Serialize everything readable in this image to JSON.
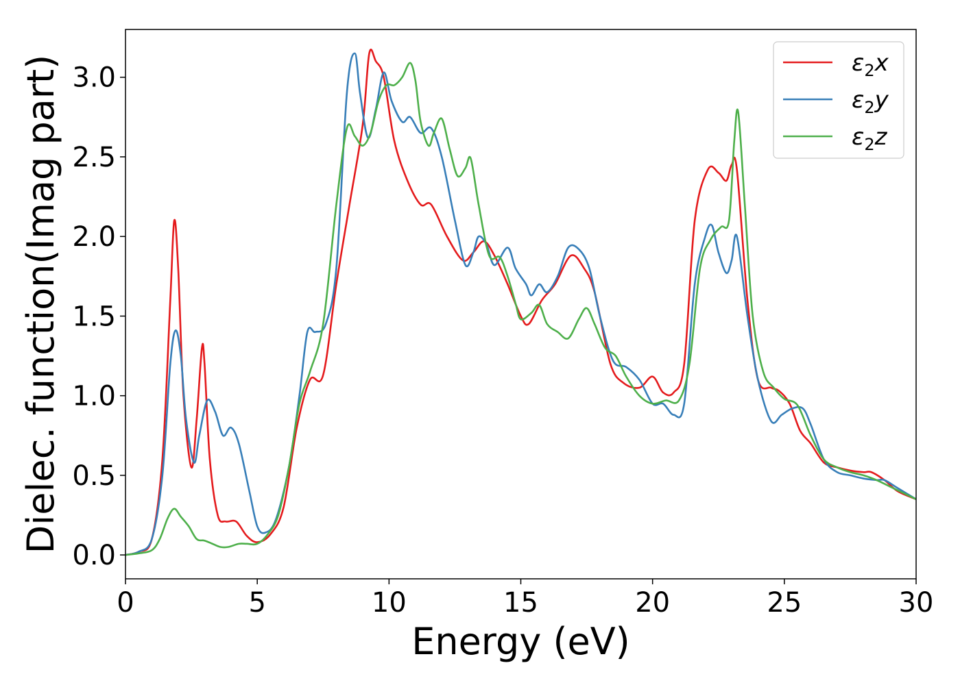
{
  "chart_data": {
    "type": "line",
    "title": "",
    "xlabel": "Energy (eV)",
    "ylabel": "Dielec. function(Imag part)",
    "xlim": [
      0,
      30
    ],
    "ylim": [
      -0.15,
      3.3
    ],
    "xticks": [
      0,
      5,
      10,
      15,
      20,
      25,
      30
    ],
    "xtick_labels": [
      "0",
      "5",
      "10",
      "15",
      "20",
      "25",
      "30"
    ],
    "yticks": [
      0.0,
      0.5,
      1.0,
      1.5,
      2.0,
      2.5,
      3.0
    ],
    "ytick_labels": [
      "0.0",
      "0.5",
      "1.0",
      "1.5",
      "2.0",
      "2.5",
      "3.0"
    ],
    "grid": false,
    "legend_position": "top-right",
    "series": [
      {
        "name": "ε2x",
        "legend_base": "ε",
        "legend_sub": "2",
        "legend_var": "x",
        "color": "#e41a1c",
        "points": [
          [
            0,
            0
          ],
          [
            0.5,
            0.02
          ],
          [
            1.0,
            0.1
          ],
          [
            1.4,
            0.6
          ],
          [
            1.7,
            1.6
          ],
          [
            1.85,
            2.1
          ],
          [
            2.0,
            1.8
          ],
          [
            2.2,
            1.0
          ],
          [
            2.5,
            0.55
          ],
          [
            2.7,
            0.85
          ],
          [
            2.9,
            1.3
          ],
          [
            3.0,
            1.2
          ],
          [
            3.2,
            0.6
          ],
          [
            3.5,
            0.25
          ],
          [
            3.8,
            0.21
          ],
          [
            4.2,
            0.21
          ],
          [
            4.6,
            0.12
          ],
          [
            5.0,
            0.08
          ],
          [
            5.5,
            0.13
          ],
          [
            6.0,
            0.3
          ],
          [
            6.5,
            0.8
          ],
          [
            7.0,
            1.1
          ],
          [
            7.5,
            1.13
          ],
          [
            8.0,
            1.7
          ],
          [
            8.5,
            2.2
          ],
          [
            9.0,
            2.7
          ],
          [
            9.25,
            3.15
          ],
          [
            9.5,
            3.1
          ],
          [
            9.8,
            3.0
          ],
          [
            10.2,
            2.6
          ],
          [
            10.7,
            2.35
          ],
          [
            11.2,
            2.2
          ],
          [
            11.6,
            2.2
          ],
          [
            12.2,
            2.0
          ],
          [
            12.8,
            1.85
          ],
          [
            13.2,
            1.9
          ],
          [
            13.6,
            1.97
          ],
          [
            14.0,
            1.88
          ],
          [
            14.5,
            1.7
          ],
          [
            15.0,
            1.5
          ],
          [
            15.3,
            1.45
          ],
          [
            15.8,
            1.6
          ],
          [
            16.3,
            1.7
          ],
          [
            16.9,
            1.88
          ],
          [
            17.4,
            1.8
          ],
          [
            17.8,
            1.65
          ],
          [
            18.4,
            1.2
          ],
          [
            18.9,
            1.08
          ],
          [
            19.5,
            1.05
          ],
          [
            20.0,
            1.12
          ],
          [
            20.4,
            1.02
          ],
          [
            20.8,
            1.02
          ],
          [
            21.2,
            1.2
          ],
          [
            21.6,
            2.1
          ],
          [
            22.1,
            2.42
          ],
          [
            22.5,
            2.4
          ],
          [
            22.8,
            2.35
          ],
          [
            23.0,
            2.45
          ],
          [
            23.2,
            2.42
          ],
          [
            23.6,
            1.6
          ],
          [
            24.0,
            1.1
          ],
          [
            24.5,
            1.05
          ],
          [
            24.8,
            1.03
          ],
          [
            25.2,
            0.95
          ],
          [
            25.6,
            0.78
          ],
          [
            26.0,
            0.7
          ],
          [
            26.5,
            0.58
          ],
          [
            27.0,
            0.55
          ],
          [
            27.5,
            0.53
          ],
          [
            28.0,
            0.52
          ],
          [
            28.3,
            0.52
          ],
          [
            28.8,
            0.47
          ],
          [
            29.3,
            0.4
          ],
          [
            30.0,
            0.35
          ]
        ]
      },
      {
        "name": "ε2y",
        "legend_base": "ε",
        "legend_sub": "2",
        "legend_var": "y",
        "color": "#377eb8",
        "points": [
          [
            0,
            0
          ],
          [
            0.5,
            0.02
          ],
          [
            1.0,
            0.1
          ],
          [
            1.4,
            0.5
          ],
          [
            1.7,
            1.2
          ],
          [
            1.9,
            1.41
          ],
          [
            2.1,
            1.25
          ],
          [
            2.3,
            0.85
          ],
          [
            2.6,
            0.58
          ],
          [
            2.8,
            0.75
          ],
          [
            3.1,
            0.97
          ],
          [
            3.4,
            0.9
          ],
          [
            3.7,
            0.75
          ],
          [
            4.0,
            0.8
          ],
          [
            4.3,
            0.7
          ],
          [
            4.7,
            0.4
          ],
          [
            5.0,
            0.18
          ],
          [
            5.3,
            0.14
          ],
          [
            5.7,
            0.22
          ],
          [
            6.2,
            0.55
          ],
          [
            6.6,
            1.0
          ],
          [
            6.9,
            1.4
          ],
          [
            7.2,
            1.4
          ],
          [
            7.6,
            1.45
          ],
          [
            8.0,
            1.8
          ],
          [
            8.4,
            2.9
          ],
          [
            8.7,
            3.15
          ],
          [
            8.9,
            2.9
          ],
          [
            9.2,
            2.62
          ],
          [
            9.5,
            2.8
          ],
          [
            9.8,
            3.03
          ],
          [
            10.1,
            2.85
          ],
          [
            10.5,
            2.72
          ],
          [
            10.8,
            2.75
          ],
          [
            11.2,
            2.65
          ],
          [
            11.6,
            2.68
          ],
          [
            12.0,
            2.5
          ],
          [
            12.5,
            2.1
          ],
          [
            12.9,
            1.82
          ],
          [
            13.2,
            1.9
          ],
          [
            13.4,
            2.0
          ],
          [
            13.7,
            1.95
          ],
          [
            14.0,
            1.82
          ],
          [
            14.5,
            1.93
          ],
          [
            14.8,
            1.8
          ],
          [
            15.2,
            1.7
          ],
          [
            15.4,
            1.63
          ],
          [
            15.7,
            1.7
          ],
          [
            16.0,
            1.65
          ],
          [
            16.4,
            1.75
          ],
          [
            16.8,
            1.93
          ],
          [
            17.2,
            1.92
          ],
          [
            17.6,
            1.8
          ],
          [
            18.0,
            1.5
          ],
          [
            18.5,
            1.22
          ],
          [
            19.0,
            1.18
          ],
          [
            19.5,
            1.1
          ],
          [
            20.0,
            0.95
          ],
          [
            20.4,
            0.95
          ],
          [
            20.8,
            0.88
          ],
          [
            21.2,
            0.95
          ],
          [
            21.6,
            1.7
          ],
          [
            22.0,
            2.0
          ],
          [
            22.25,
            2.07
          ],
          [
            22.5,
            1.9
          ],
          [
            22.8,
            1.77
          ],
          [
            23.0,
            1.85
          ],
          [
            23.2,
            2.0
          ],
          [
            23.6,
            1.5
          ],
          [
            24.0,
            1.1
          ],
          [
            24.5,
            0.84
          ],
          [
            24.9,
            0.88
          ],
          [
            25.3,
            0.92
          ],
          [
            25.7,
            0.92
          ],
          [
            26.0,
            0.82
          ],
          [
            26.5,
            0.6
          ],
          [
            27.0,
            0.52
          ],
          [
            27.5,
            0.5
          ],
          [
            28.0,
            0.48
          ],
          [
            28.5,
            0.47
          ],
          [
            28.8,
            0.47
          ],
          [
            29.3,
            0.42
          ],
          [
            30.0,
            0.35
          ]
        ]
      },
      {
        "name": "ε2z",
        "legend_base": "ε",
        "legend_sub": "2",
        "legend_var": "z",
        "color": "#4daf4a",
        "points": [
          [
            0,
            0
          ],
          [
            0.5,
            0.01
          ],
          [
            1.0,
            0.03
          ],
          [
            1.3,
            0.1
          ],
          [
            1.6,
            0.23
          ],
          [
            1.85,
            0.29
          ],
          [
            2.1,
            0.24
          ],
          [
            2.4,
            0.18
          ],
          [
            2.7,
            0.1
          ],
          [
            3.0,
            0.09
          ],
          [
            3.3,
            0.07
          ],
          [
            3.6,
            0.05
          ],
          [
            3.9,
            0.05
          ],
          [
            4.3,
            0.07
          ],
          [
            4.6,
            0.07
          ],
          [
            5.0,
            0.07
          ],
          [
            5.4,
            0.13
          ],
          [
            5.8,
            0.25
          ],
          [
            6.2,
            0.55
          ],
          [
            6.6,
            0.95
          ],
          [
            7.0,
            1.15
          ],
          [
            7.5,
            1.45
          ],
          [
            8.0,
            2.2
          ],
          [
            8.4,
            2.68
          ],
          [
            8.7,
            2.63
          ],
          [
            9.0,
            2.57
          ],
          [
            9.3,
            2.65
          ],
          [
            9.6,
            2.85
          ],
          [
            9.9,
            2.95
          ],
          [
            10.2,
            2.95
          ],
          [
            10.5,
            3.0
          ],
          [
            10.8,
            3.09
          ],
          [
            11.0,
            2.98
          ],
          [
            11.2,
            2.72
          ],
          [
            11.5,
            2.57
          ],
          [
            11.7,
            2.65
          ],
          [
            12.0,
            2.74
          ],
          [
            12.3,
            2.55
          ],
          [
            12.6,
            2.38
          ],
          [
            12.9,
            2.43
          ],
          [
            13.1,
            2.49
          ],
          [
            13.4,
            2.2
          ],
          [
            13.8,
            1.88
          ],
          [
            14.2,
            1.87
          ],
          [
            14.5,
            1.75
          ],
          [
            14.8,
            1.58
          ],
          [
            15.0,
            1.48
          ],
          [
            15.4,
            1.52
          ],
          [
            15.7,
            1.57
          ],
          [
            16.0,
            1.45
          ],
          [
            16.4,
            1.4
          ],
          [
            16.8,
            1.36
          ],
          [
            17.2,
            1.48
          ],
          [
            17.5,
            1.55
          ],
          [
            17.8,
            1.45
          ],
          [
            18.2,
            1.3
          ],
          [
            18.6,
            1.25
          ],
          [
            19.0,
            1.12
          ],
          [
            19.5,
            1.0
          ],
          [
            20.0,
            0.95
          ],
          [
            20.5,
            0.97
          ],
          [
            21.0,
            0.97
          ],
          [
            21.4,
            1.2
          ],
          [
            21.8,
            1.8
          ],
          [
            22.2,
            1.98
          ],
          [
            22.6,
            2.06
          ],
          [
            22.9,
            2.1
          ],
          [
            23.1,
            2.6
          ],
          [
            23.25,
            2.78
          ],
          [
            23.5,
            2.2
          ],
          [
            23.8,
            1.5
          ],
          [
            24.2,
            1.15
          ],
          [
            24.6,
            1.05
          ],
          [
            25.0,
            0.98
          ],
          [
            25.5,
            0.94
          ],
          [
            26.0,
            0.75
          ],
          [
            26.5,
            0.6
          ],
          [
            27.0,
            0.55
          ],
          [
            27.5,
            0.52
          ],
          [
            28.0,
            0.5
          ],
          [
            28.5,
            0.47
          ],
          [
            29.0,
            0.43
          ],
          [
            29.5,
            0.39
          ],
          [
            30.0,
            0.35
          ]
        ]
      }
    ]
  }
}
